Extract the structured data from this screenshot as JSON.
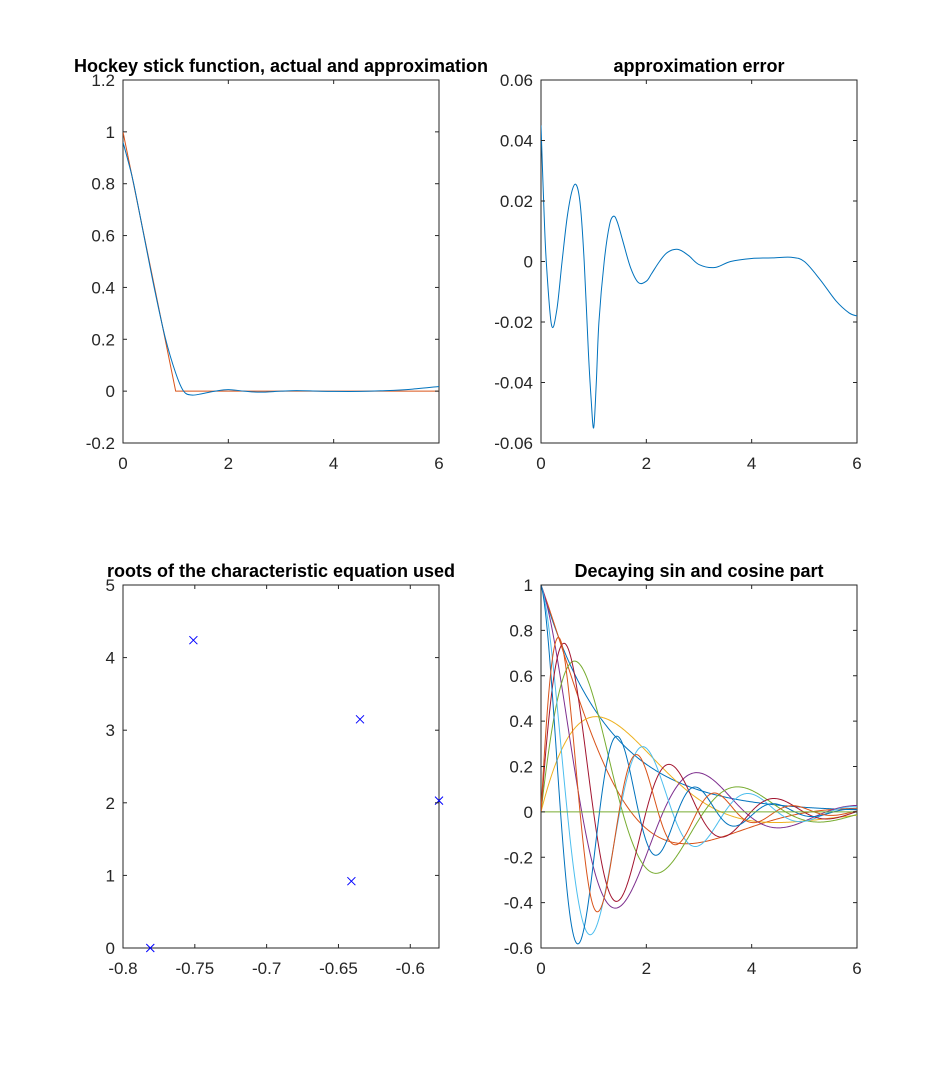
{
  "chart_data": [
    {
      "type": "line",
      "title": "Hockey stick function, actual and approximation",
      "xlim": [
        0,
        6
      ],
      "ylim": [
        -0.2,
        1.2
      ],
      "xticks": [
        "0",
        "2",
        "4",
        "6"
      ],
      "yticks": [
        "-0.2",
        "0",
        "0.2",
        "0.4",
        "0.6",
        "0.8",
        "1",
        "1.2"
      ],
      "grid": false,
      "series": [
        {
          "color": "#D95319",
          "x": [
            0,
            1,
            6
          ],
          "y": [
            1,
            0,
            0
          ]
        },
        {
          "color": "#0072BD",
          "x": [
            0,
            0.1,
            0.2,
            0.4,
            0.6,
            0.8,
            1.0,
            1.15,
            1.3,
            1.5,
            1.75,
            2.0,
            2.3,
            2.6,
            3.0,
            3.3,
            3.7,
            4.0,
            4.5,
            5.0,
            5.5,
            6.0
          ],
          "y": [
            0.96,
            0.885,
            0.803,
            0.597,
            0.392,
            0.208,
            0.07,
            0.0,
            -0.015,
            -0.01,
            0.0,
            0.006,
            0.0,
            -0.004,
            0.0,
            0.002,
            0.0,
            -0.001,
            -0.001,
            0.002,
            0.008,
            0.018
          ]
        }
      ]
    },
    {
      "type": "line",
      "title": "approximation error",
      "xlim": [
        0,
        6
      ],
      "ylim": [
        -0.06,
        0.06
      ],
      "xticks": [
        "0",
        "2",
        "4",
        "6"
      ],
      "yticks": [
        "-0.06",
        "-0.04",
        "-0.02",
        "0",
        "0.02",
        "0.04",
        "0.06"
      ],
      "grid": false,
      "series": [
        {
          "color": "#0072BD",
          "x": [
            0,
            0.05,
            0.1,
            0.2,
            0.3,
            0.4,
            0.5,
            0.6,
            0.68,
            0.75,
            0.82,
            0.9,
            0.95,
            1.0,
            1.05,
            1.1,
            1.2,
            1.3,
            1.38,
            1.45,
            1.55,
            1.7,
            1.85,
            2.0,
            2.1,
            2.25,
            2.4,
            2.6,
            2.8,
            3.0,
            3.3,
            3.6,
            4.0,
            4.4,
            4.75,
            5.0,
            5.3,
            5.6,
            5.85,
            6.0
          ],
          "y": [
            0.045,
            0.02,
            0.0,
            -0.021,
            -0.016,
            0.0,
            0.015,
            0.024,
            0.025,
            0.018,
            0.0,
            -0.03,
            -0.045,
            -0.055,
            -0.04,
            -0.02,
            0.0,
            0.012,
            0.015,
            0.013,
            0.007,
            -0.002,
            -0.007,
            -0.0065,
            -0.004,
            0.0,
            0.003,
            0.004,
            0.002,
            -0.001,
            -0.002,
            0.0,
            0.001,
            0.0012,
            0.0014,
            0.0,
            -0.006,
            -0.013,
            -0.017,
            -0.018
          ]
        }
      ]
    },
    {
      "type": "scatter",
      "title": "roots of the characteristic equation used",
      "xlim": [
        -0.8,
        -0.58
      ],
      "ylim": [
        0,
        5
      ],
      "xticks": [
        -0.8,
        -0.75,
        -0.7,
        -0.65,
        -0.6
      ],
      "xtick_labels": [
        "-0.8",
        "-0.75",
        "-0.7",
        "-0.65",
        "-0.6"
      ],
      "yticks": [
        "0",
        "1",
        "2",
        "3",
        "4",
        "5"
      ],
      "grid": false,
      "marker": "x",
      "color": "#0000FF",
      "x": [
        -0.781,
        -0.751,
        -0.641,
        -0.635,
        -0.58
      ],
      "y": [
        0.0,
        4.24,
        0.92,
        3.15,
        2.03
      ]
    },
    {
      "type": "line",
      "title": "Decaying sin and cosine part",
      "xlim": [
        0,
        6
      ],
      "ylim": [
        -0.6,
        1
      ],
      "xticks": [
        "0",
        "2",
        "4",
        "6"
      ],
      "yticks": [
        "-0.6",
        "-0.4",
        "-0.2",
        "0",
        "0.2",
        "0.4",
        "0.6",
        "0.8",
        "1"
      ],
      "grid": false,
      "series": [
        {
          "kind": "cos",
          "decay": 0.781,
          "omega": 0.0,
          "color": "#0072BD"
        },
        {
          "kind": "cos",
          "decay": 0.641,
          "omega": 0.92,
          "color": "#D95319"
        },
        {
          "kind": "sin",
          "decay": 0.641,
          "omega": 0.92,
          "color": "#EDB120"
        },
        {
          "kind": "cos",
          "decay": 0.58,
          "omega": 2.03,
          "color": "#7E2F8E"
        },
        {
          "kind": "sin",
          "decay": 0.58,
          "omega": 2.03,
          "color": "#77AC30"
        },
        {
          "kind": "cos",
          "decay": 0.635,
          "omega": 3.15,
          "color": "#4DBEEE"
        },
        {
          "kind": "sin",
          "decay": 0.635,
          "omega": 3.15,
          "color": "#A2142F"
        },
        {
          "kind": "cos",
          "decay": 0.751,
          "omega": 4.24,
          "color": "#0072BD"
        },
        {
          "kind": "sin",
          "decay": 0.751,
          "omega": 4.24,
          "color": "#D95319"
        },
        {
          "kind": "zero",
          "decay": 0,
          "omega": 0,
          "color": "#77AC30"
        }
      ]
    }
  ]
}
